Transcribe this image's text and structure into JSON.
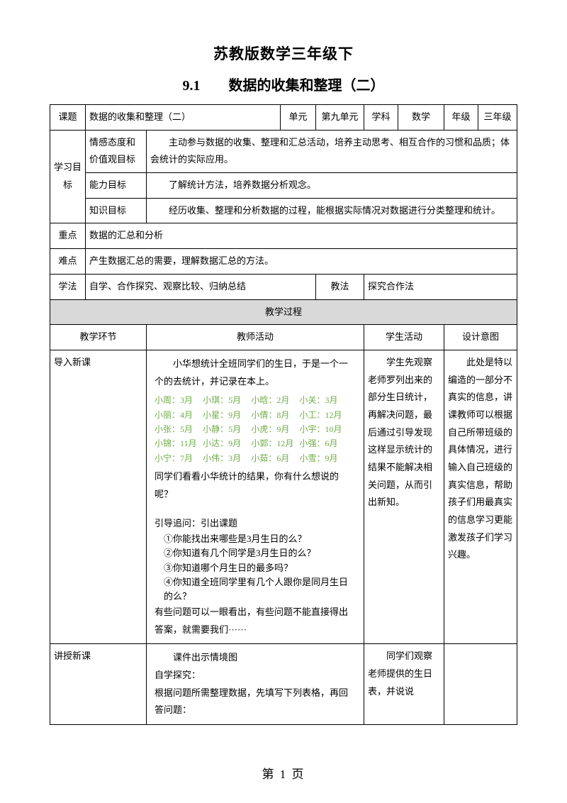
{
  "title_line1": "苏教版数学三年级下",
  "title_line2": "9.1　　数据的收集和整理（二）",
  "row1": {
    "c1": "课题",
    "c2": "数据的收集和整理（二）",
    "c3": "单元",
    "c4": "第九单元",
    "c5": "学科",
    "c6": "数学",
    "c7": "年级",
    "c8": "三年级"
  },
  "learning": {
    "label": "学习目标",
    "attitude_label": "情感态度和价值观目标",
    "attitude_text": "　　主动参与数据的收集、整理和汇总活动，培养主动思考、相互合作的习惯和品质；体会统计的实际应用。",
    "ability_label": "能力目标",
    "ability_text": "　　了解统计方法，培养数据分析观念。",
    "knowledge_label": "知识目标",
    "knowledge_text": "　　经历收集、整理和分析数据的过程，能根据实际情况对数据进行分类整理和统计。"
  },
  "key_point": {
    "label": "重点",
    "text": "数据的汇总和分析"
  },
  "difficulty": {
    "label": "难点",
    "text": "产生数据汇总的需要，理解数据汇总的方法。"
  },
  "method": {
    "label": "学法",
    "text": "自学、合作探究、观察比较、归纳总结",
    "teach_label": "教法",
    "teach_text": "探究合作法"
  },
  "process_header": "教学过程",
  "columns": {
    "c1": "教学环节",
    "c2": "教师活动",
    "c3": "学生活动",
    "c4": "设计意图"
  },
  "intro": {
    "stage": "导入新课",
    "p1": "　　小华想统计全班同学们的生日，于是一个一个的去统计，并记录在本上。",
    "birthdays": [
      [
        "小周：3月",
        "小琪：5月",
        "小晗：2月",
        "小关：3月"
      ],
      [
        "小丽：4月",
        "小星：9月",
        "小倩：8月",
        "小工：12月"
      ],
      [
        "小张：5月",
        "小静：5月",
        "小虎：9月",
        "小宇：10月"
      ],
      [
        "小锦：11月",
        "小达：9月",
        "小郭：12月",
        "小强：6月"
      ],
      [
        "小宁：7月",
        "小伟：3月",
        "小茹：6月",
        "小雪：9月"
      ]
    ],
    "p2": "同学们看看小华统计的结果，你有什么想说的呢？",
    "p3": "引导追问：引出课题",
    "q1": "①你能找出来哪些是3月生日的么？",
    "q2": "②你知道有几个同学是3月生日的么？",
    "q3": "③你知道哪个月生日的最多吗？",
    "q4": "④你知道全班同学里有几个人跟你是同月生日的么？",
    "p4": "有些问题可以一眼看出，有些问题不能直接得出答案，就需要我们······",
    "student_text": "　　学生先观察老师罗列出来的部分生日统计，再解决问题，最后通过引导发现这样显示统计的结果不能解决相关问题，从而引出新知。",
    "design_text": "　　此处是特以编造的一部分不真实的信息，讲课教师可以根据自己所带班级的具体情况，进行输入自己班级的真实信息，帮助孩子们用最真实的信息学习更能激发孩子们学习兴趣。"
  },
  "teach": {
    "stage": "讲授新课",
    "p1": "　　课件出示情境图",
    "p2": "自学探究：",
    "p3": "根据问题所需整理数据，先填写下列表格，再回答问题：",
    "student_text": "　　同学们观察老师提供的生日表，并说说"
  },
  "footer": "第 1 页",
  "colors": {
    "green": "#70ad47",
    "gray": "#d9d9d9",
    "black": "#000000",
    "white": "#ffffff"
  }
}
